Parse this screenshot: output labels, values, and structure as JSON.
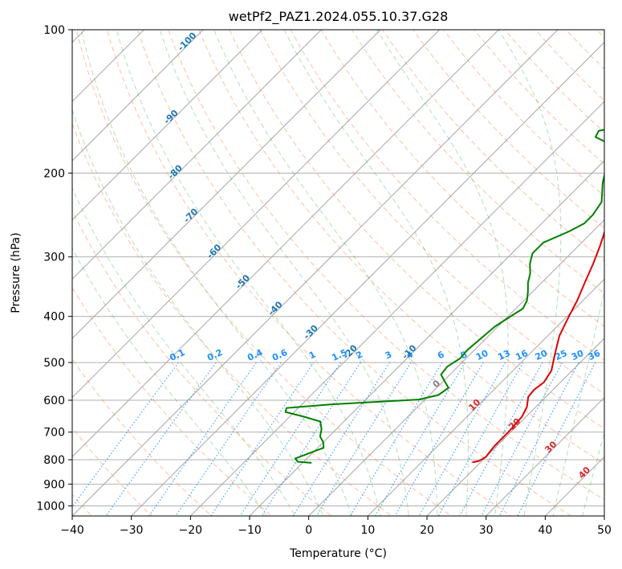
{
  "chart_data": {
    "type": "line",
    "title": "wetPf2_PAZ1.2024.055.10.37.G28",
    "xlabel": "Temperature (°C)",
    "ylabel": "Pressure (hPa)",
    "xlim": [
      -40,
      50
    ],
    "ylim": [
      1050,
      100
    ],
    "y_scale": "log",
    "x_ticks": [
      "−40",
      "−30",
      "−20",
      "−10",
      "0",
      "10",
      "20",
      "30",
      "40",
      "50"
    ],
    "x_tick_values": [
      -40,
      -30,
      -20,
      -10,
      0,
      10,
      20,
      30,
      40,
      50
    ],
    "y_ticks": [
      "100",
      "200",
      "300",
      "400",
      "500",
      "600",
      "700",
      "800",
      "900",
      "1000"
    ],
    "y_tick_values": [
      100,
      200,
      300,
      400,
      500,
      600,
      700,
      800,
      900,
      1000
    ],
    "grid": true,
    "colors": {
      "temperature": "#e00000",
      "dewpoint": "#008000",
      "dry_adiabat": "#ff7f50",
      "moist_adiabat": "#2ca02c",
      "mixing_ratio": "#1e90ff",
      "isotherm": "#808080"
    },
    "series": [
      {
        "role": "temperature",
        "points": [
          [
            13.0,
            100
          ],
          [
            11.5,
            115
          ],
          [
            10.2,
            130
          ],
          [
            9.8,
            140
          ],
          [
            10.2,
            150
          ],
          [
            10.5,
            160
          ],
          [
            9.6,
            170
          ],
          [
            7.5,
            180
          ],
          [
            4.0,
            190
          ],
          [
            2.0,
            200
          ],
          [
            0.5,
            210
          ],
          [
            0.2,
            225
          ],
          [
            0.8,
            245
          ],
          [
            2.0,
            265
          ],
          [
            3.7,
            285
          ],
          [
            5.5,
            310
          ],
          [
            7.3,
            340
          ],
          [
            9.0,
            370
          ],
          [
            10.3,
            400
          ],
          [
            12.0,
            440
          ],
          [
            14.3,
            480
          ],
          [
            16.5,
            520
          ],
          [
            17.2,
            550
          ],
          [
            16.8,
            570
          ],
          [
            17.0,
            590
          ],
          [
            18.5,
            620
          ],
          [
            19.3,
            650
          ],
          [
            19.6,
            700
          ],
          [
            19.6,
            750
          ],
          [
            20.0,
            790
          ],
          [
            19.5,
            805
          ],
          [
            18.6,
            810
          ]
        ]
      },
      {
        "role": "dewpoint",
        "points": [
          [
            0.5,
            100
          ],
          [
            -2.0,
            110
          ],
          [
            -4.5,
            120
          ],
          [
            -6.5,
            130
          ],
          [
            -7.3,
            140
          ],
          [
            -8.0,
            150
          ],
          [
            -11.5,
            158
          ],
          [
            -16.0,
            163
          ],
          [
            -15.5,
            168
          ],
          [
            -13.0,
            172
          ],
          [
            -10.5,
            180
          ],
          [
            -8.5,
            195
          ],
          [
            -6.5,
            210
          ],
          [
            -3.5,
            230
          ],
          [
            -2.8,
            245
          ],
          [
            -2.8,
            255
          ],
          [
            -4.0,
            265
          ],
          [
            -6.5,
            280
          ],
          [
            -6.5,
            295
          ],
          [
            -5.2,
            310
          ],
          [
            -3.5,
            325
          ],
          [
            -2.3,
            340
          ],
          [
            -0.8,
            355
          ],
          [
            0.5,
            370
          ],
          [
            1.2,
            385
          ],
          [
            0.2,
            405
          ],
          [
            -0.5,
            420
          ],
          [
            -0.8,
            440
          ],
          [
            -1.2,
            470
          ],
          [
            -1.0,
            490
          ],
          [
            -1.8,
            510
          ],
          [
            -1.5,
            530
          ],
          [
            0.5,
            550
          ],
          [
            2.0,
            565
          ],
          [
            1.5,
            585
          ],
          [
            -1.0,
            598
          ],
          [
            -8.0,
            605
          ],
          [
            -15.0,
            612
          ],
          [
            -22.0,
            623
          ],
          [
            -21.5,
            635
          ],
          [
            -17.5,
            650
          ],
          [
            -14.0,
            665
          ],
          [
            -12.5,
            690
          ],
          [
            -11.5,
            715
          ],
          [
            -10.0,
            735
          ],
          [
            -9.0,
            755
          ],
          [
            -10.5,
            775
          ],
          [
            -12.0,
            795
          ],
          [
            -11.0,
            808
          ],
          [
            -8.5,
            812
          ]
        ]
      }
    ],
    "dry_adiabat_labels": [
      "-100",
      "-90",
      "-80",
      "-70",
      "-60",
      "-50",
      "-40",
      "-30",
      "-20",
      "-10"
    ],
    "dry_adiabat_values": [
      -100,
      -90,
      -80,
      -70,
      -60,
      -50,
      -40,
      -30,
      -20,
      -10
    ],
    "moist_adiabat_labels": [
      "0",
      "10",
      "20",
      "30",
      "40"
    ],
    "moist_adiabat_values": [
      0,
      10,
      20,
      30,
      40
    ],
    "mixing_ratio_labels": [
      "0.1",
      "0.2",
      "0.4",
      "0.6",
      "1",
      "1.5",
      "2",
      "3",
      "4",
      "6",
      "8",
      "10",
      "13",
      "16",
      "20",
      "25",
      "30",
      "36"
    ],
    "mixing_ratio_values": [
      0.1,
      0.2,
      0.4,
      0.6,
      1,
      1.5,
      2,
      3,
      4,
      6,
      8,
      10,
      13,
      16,
      20,
      25,
      30,
      36
    ]
  }
}
